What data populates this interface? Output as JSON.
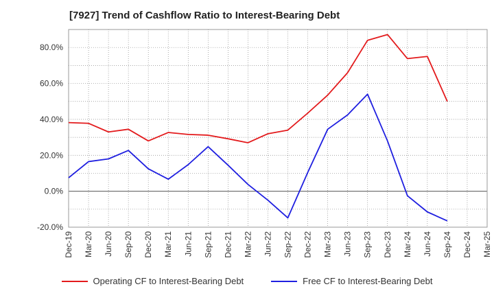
{
  "chart_data": {
    "type": "line",
    "title": "[7927]  Trend of Cashflow Ratio to Interest-Bearing Debt",
    "xlabel": "",
    "ylabel": "",
    "ylim": [
      -20,
      90
    ],
    "yticks": [
      -20,
      0,
      20,
      40,
      60,
      80
    ],
    "ytick_labels": [
      "-20.0%",
      "0.0%",
      "20.0%",
      "40.0%",
      "60.0%",
      "80.0%"
    ],
    "categories": [
      "Dec-19",
      "Mar-20",
      "Jun-20",
      "Sep-20",
      "Dec-20",
      "Mar-21",
      "Jun-21",
      "Sep-21",
      "Dec-21",
      "Mar-22",
      "Jun-22",
      "Sep-22",
      "Dec-22",
      "Mar-23",
      "Jun-23",
      "Sep-23",
      "Dec-23",
      "Mar-24",
      "Jun-24",
      "Sep-24",
      "Dec-24",
      "Mar-25"
    ],
    "grid": true,
    "legend_position": "bottom",
    "series": [
      {
        "name": "Operating CF to Interest-Bearing Debt",
        "color": "#e31a1c",
        "values": [
          38.2,
          37.8,
          33.0,
          34.5,
          28.0,
          32.7,
          31.6,
          31.2,
          29.2,
          27.0,
          32.0,
          34.0,
          43.5,
          53.5,
          66.0,
          84.0,
          87.2,
          73.8,
          75.0,
          50.0,
          null,
          null
        ]
      },
      {
        "name": "Free CF to Interest-Bearing Debt",
        "color": "#1f1fe0",
        "values": [
          7.5,
          16.5,
          18.0,
          22.7,
          12.5,
          6.7,
          14.8,
          24.8,
          14.5,
          3.8,
          -5.0,
          -14.8,
          10.5,
          34.5,
          42.5,
          54.0,
          28.0,
          -2.5,
          -11.5,
          -16.5,
          null,
          null
        ]
      }
    ]
  }
}
